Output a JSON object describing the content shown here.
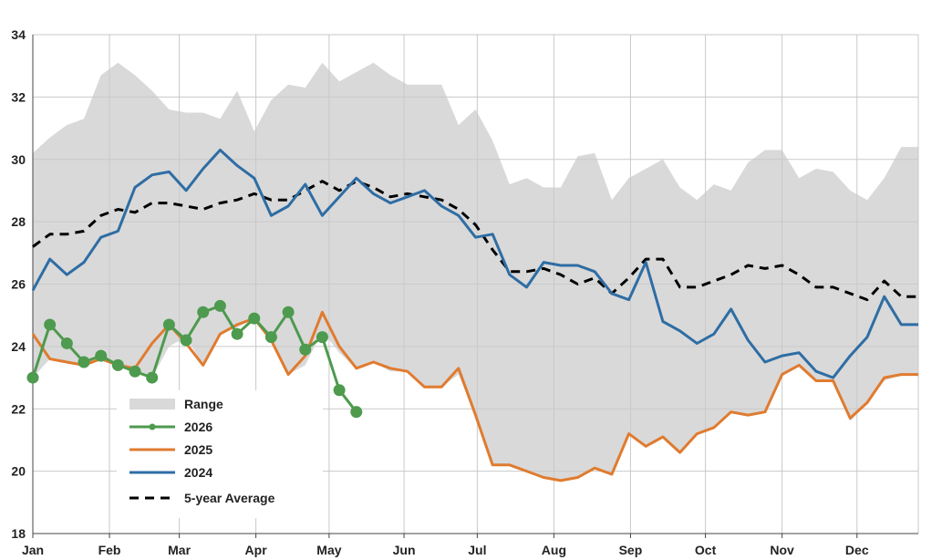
{
  "chart_data": {
    "type": "line",
    "title": "",
    "xlabel": "",
    "ylabel": "",
    "ylim": [
      18,
      34
    ],
    "yticks": [
      18,
      20,
      22,
      24,
      26,
      28,
      30,
      32,
      34
    ],
    "xlim": [
      0,
      52
    ],
    "month_labels": [
      "Jan",
      "Feb",
      "Mar",
      "Apr",
      "May",
      "Jun",
      "Jul",
      "Aug",
      "Sep",
      "Oct",
      "Nov",
      "Dec"
    ],
    "month_weeks": [
      0,
      4.5,
      8.6,
      13.1,
      17.4,
      21.8,
      26.1,
      30.6,
      35.1,
      39.5,
      44.0,
      48.4
    ],
    "grid": true,
    "legend_position": "lower-left",
    "legend": [
      "Range",
      "2026",
      "2025",
      "2024",
      "5-year Average"
    ],
    "range": {
      "name": "Range",
      "color": "#d9d9d9",
      "x": [
        0,
        1,
        2,
        3,
        4,
        5,
        6,
        7,
        8,
        9,
        10,
        11,
        12,
        13,
        14,
        15,
        16,
        17,
        18,
        19,
        20,
        21,
        22,
        23,
        24,
        25,
        26,
        27,
        28,
        29,
        30,
        31,
        32,
        33,
        34,
        35,
        36,
        37,
        38,
        39,
        40,
        41,
        42,
        43,
        44,
        45,
        46,
        47,
        48,
        49,
        50,
        51,
        52
      ],
      "upper": [
        30.2,
        30.7,
        31.1,
        31.3,
        32.7,
        33.1,
        32.7,
        32.2,
        31.6,
        31.5,
        31.5,
        31.3,
        32.2,
        30.9,
        31.9,
        32.4,
        32.3,
        33.1,
        32.5,
        32.8,
        33.1,
        32.7,
        32.4,
        32.4,
        32.4,
        31.1,
        31.6,
        30.6,
        29.2,
        29.4,
        29.1,
        29.1,
        30.1,
        30.2,
        28.7,
        29.4,
        29.7,
        30.0,
        29.1,
        28.7,
        29.2,
        29.0,
        29.9,
        30.3,
        30.3,
        29.4,
        29.7,
        29.6,
        29.0,
        28.7,
        29.4,
        30.4,
        30.4
      ],
      "lower": [
        23.0,
        23.6,
        23.5,
        23.4,
        23.6,
        23.4,
        23.2,
        23.0,
        24.0,
        24.3,
        23.4,
        24.4,
        24.6,
        24.9,
        24.2,
        23.1,
        23.4,
        24.5,
        23.8,
        23.3,
        23.5,
        23.2,
        23.2,
        22.7,
        22.7,
        23.1,
        21.8,
        20.2,
        20.2,
        20.0,
        19.8,
        19.7,
        19.8,
        20.1,
        19.9,
        21.2,
        20.8,
        21.1,
        20.6,
        21.2,
        21.4,
        21.9,
        21.8,
        21.9,
        23.1,
        23.4,
        22.9,
        22.9,
        21.6,
        22.2,
        22.9,
        23.1,
        23.1
      ]
    },
    "series": [
      {
        "name": "2026",
        "color": "#4e9a4e",
        "markers": true,
        "x": [
          0,
          1,
          2,
          3,
          4,
          5,
          6,
          7,
          8,
          9,
          10,
          11,
          12,
          13,
          14,
          15,
          16,
          17,
          18,
          19
        ],
        "values": [
          23.0,
          24.7,
          24.1,
          23.5,
          23.7,
          23.4,
          23.2,
          23.0,
          24.7,
          24.2,
          25.1,
          25.3,
          24.4,
          24.9,
          24.3,
          25.1,
          23.9,
          24.3,
          22.6,
          21.9
        ]
      },
      {
        "name": "2025",
        "color": "#e07b2f",
        "markers": false,
        "x": [
          0,
          1,
          2,
          3,
          4,
          5,
          6,
          7,
          8,
          9,
          10,
          11,
          12,
          13,
          14,
          15,
          16,
          17,
          18,
          19,
          20,
          21,
          22,
          23,
          24,
          25,
          26,
          27,
          28,
          29,
          30,
          31,
          32,
          33,
          34,
          35,
          36,
          37,
          38,
          39,
          40,
          41,
          42,
          43,
          44,
          45,
          46,
          47,
          48,
          49,
          50,
          51,
          52
        ],
        "values": [
          24.4,
          23.6,
          23.5,
          23.4,
          23.6,
          23.4,
          23.3,
          24.1,
          24.7,
          24.1,
          23.4,
          24.4,
          24.7,
          24.9,
          24.2,
          23.1,
          23.7,
          25.1,
          24.0,
          23.3,
          23.5,
          23.3,
          23.2,
          22.7,
          22.7,
          23.3,
          21.8,
          20.2,
          20.2,
          20.0,
          19.8,
          19.7,
          19.8,
          20.1,
          19.9,
          21.2,
          20.8,
          21.1,
          20.6,
          21.2,
          21.4,
          21.9,
          21.8,
          21.9,
          23.1,
          23.4,
          22.9,
          22.9,
          21.7,
          22.2,
          23.0,
          23.1,
          23.1
        ]
      },
      {
        "name": "2024",
        "color": "#2e6da4",
        "markers": false,
        "x": [
          0,
          1,
          2,
          3,
          4,
          5,
          6,
          7,
          8,
          9,
          10,
          11,
          12,
          13,
          14,
          15,
          16,
          17,
          18,
          19,
          20,
          21,
          22,
          23,
          24,
          25,
          26,
          27,
          28,
          29,
          30,
          31,
          32,
          33,
          34,
          35,
          36,
          37,
          38,
          39,
          40,
          41,
          42,
          43,
          44,
          45,
          46,
          47,
          48,
          49,
          50,
          51,
          52
        ],
        "values": [
          25.8,
          26.8,
          26.3,
          26.7,
          27.5,
          27.7,
          29.1,
          29.5,
          29.6,
          29.0,
          29.7,
          30.3,
          29.8,
          29.4,
          28.2,
          28.5,
          29.2,
          28.2,
          28.8,
          29.4,
          28.9,
          28.6,
          28.8,
          29.0,
          28.5,
          28.2,
          27.5,
          27.6,
          26.3,
          25.9,
          26.7,
          26.6,
          26.6,
          26.4,
          25.7,
          25.5,
          26.7,
          24.8,
          24.5,
          24.1,
          24.4,
          25.2,
          24.2,
          23.5,
          23.7,
          23.8,
          23.2,
          23.0,
          23.7,
          24.3,
          25.6,
          24.7,
          24.7
        ]
      },
      {
        "name": "5-year Average",
        "color": "#000000",
        "dashed": true,
        "markers": false,
        "x": [
          0,
          1,
          2,
          3,
          4,
          5,
          6,
          7,
          8,
          9,
          10,
          11,
          12,
          13,
          14,
          15,
          16,
          17,
          18,
          19,
          20,
          21,
          22,
          23,
          24,
          25,
          26,
          27,
          28,
          29,
          30,
          31,
          32,
          33,
          34,
          35,
          36,
          37,
          38,
          39,
          40,
          41,
          42,
          43,
          44,
          45,
          46,
          47,
          48,
          49,
          50,
          51,
          52
        ],
        "values": [
          27.2,
          27.6,
          27.6,
          27.7,
          28.2,
          28.4,
          28.3,
          28.6,
          28.6,
          28.5,
          28.4,
          28.6,
          28.7,
          28.9,
          28.7,
          28.7,
          29.0,
          29.3,
          29.0,
          29.3,
          29.1,
          28.8,
          28.9,
          28.8,
          28.7,
          28.4,
          27.9,
          27.1,
          26.4,
          26.4,
          26.5,
          26.3,
          26.0,
          26.2,
          25.7,
          26.2,
          26.8,
          26.8,
          25.9,
          25.9,
          26.1,
          26.3,
          26.6,
          26.5,
          26.6,
          26.3,
          25.9,
          25.9,
          25.7,
          25.5,
          26.1,
          25.6,
          25.6
        ]
      }
    ]
  }
}
